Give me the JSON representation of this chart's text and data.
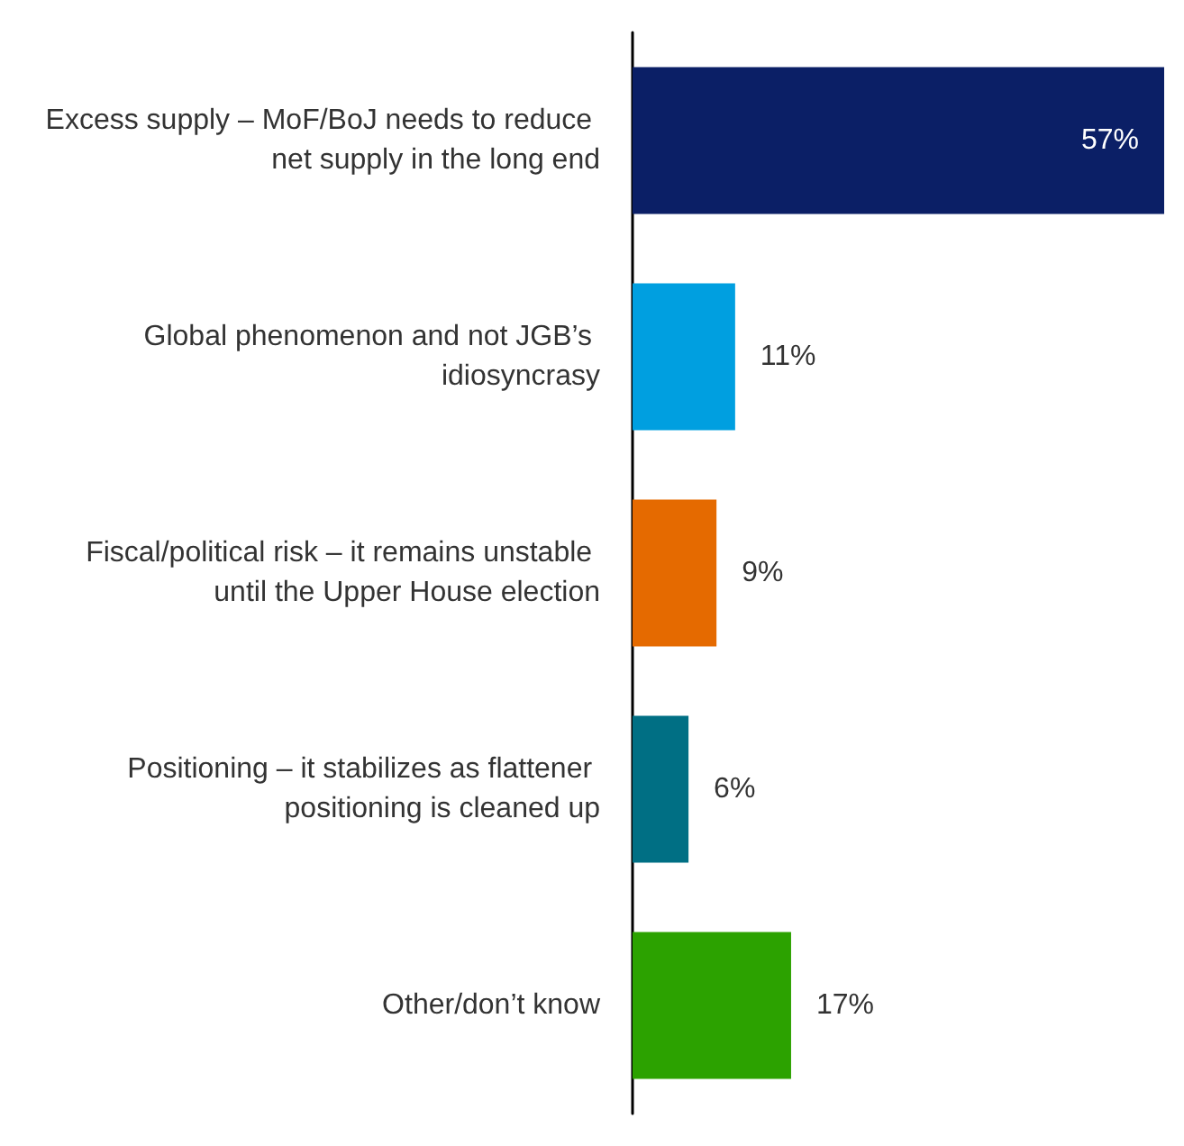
{
  "chart_data": {
    "type": "bar",
    "orientation": "horizontal",
    "categories": [
      "Excess supply – MoF/BoJ needs to reduce net supply in the long end",
      "Global phenomenon and not JGB’s idiosyncrasy",
      "Fiscal/political risk – it remains unstable until the Upper House election",
      "Positioning – it stabilizes as flattener positioning is cleaned up",
      "Other/don’t know"
    ],
    "values": [
      57,
      11,
      9,
      6,
      17
    ],
    "colors": [
      "#0b1f66",
      "#009fe0",
      "#e56a00",
      "#006f84",
      "#2ca200"
    ],
    "value_labels": [
      "57%",
      "11%",
      "9%",
      "6%",
      "17%"
    ]
  }
}
